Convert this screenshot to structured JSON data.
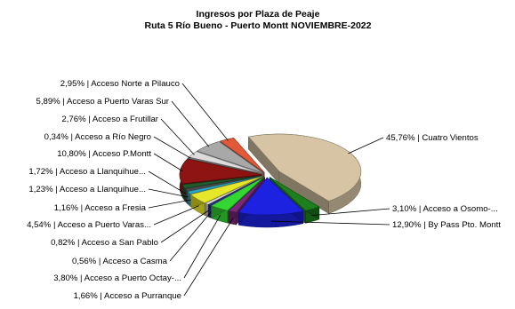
{
  "chart_data": {
    "type": "pie",
    "title": "Ingresos por Plaza de Peaje",
    "subtitle": "Ruta 5 Río Bueno - Puerto Montt NOVIEMBRE-2022",
    "style": "3d-exploded",
    "slices": [
      {
        "label": "45,76% | Cuatro Vientos",
        "value": 45.76,
        "color": "#d6c4a4"
      },
      {
        "label": "3,10% | Acceso a Osomo-...",
        "value": 3.1,
        "color": "#1e7f1e"
      },
      {
        "label": "12,90% | By Pass Pto. Montt",
        "value": 12.9,
        "color": "#1d22e0"
      },
      {
        "label": "1,66% | Acceso a Purranque",
        "value": 1.66,
        "color": "#7a2a7a"
      },
      {
        "label": "3,80% | Acceso a Puerto Octay-...",
        "value": 3.8,
        "color": "#33d633"
      },
      {
        "label": "0,56% | Acceso a Casma",
        "value": 0.56,
        "color": "#2e2e8e"
      },
      {
        "label": "0,82% | Acceso a San Pablo",
        "value": 0.82,
        "color": "#d6d6d6"
      },
      {
        "label": "4,54% | Acceso a Puerto Varas...",
        "value": 4.54,
        "color": "#e6e62a"
      },
      {
        "label": "1,16% | Acceso a Fresia",
        "value": 1.16,
        "color": "#2aa6c6"
      },
      {
        "label": "1,23% | Acceso a Llanquihue...",
        "value": 1.23,
        "color": "#4a4a4a"
      },
      {
        "label": "1,72% | Acceso a Llanquihue...",
        "value": 1.72,
        "color": "#1f5a2a"
      },
      {
        "label": "10,80% | Acceso P.Montt",
        "value": 10.8,
        "color": "#8e1414"
      },
      {
        "label": "0,34% | Acceso a Río Negro",
        "value": 0.34,
        "color": "#9a9a9a"
      },
      {
        "label": "2,76% | Acceso a Frutillar",
        "value": 2.76,
        "color": "#dcdcdc"
      },
      {
        "label": "5,89% | Acceso a Puerto Varas Sur",
        "value": 5.89,
        "color": "#a8a8a8"
      },
      {
        "label": "2,95% | Acceso Norte a Pilauco",
        "value": 2.95,
        "color": "#e05a3a"
      }
    ]
  }
}
